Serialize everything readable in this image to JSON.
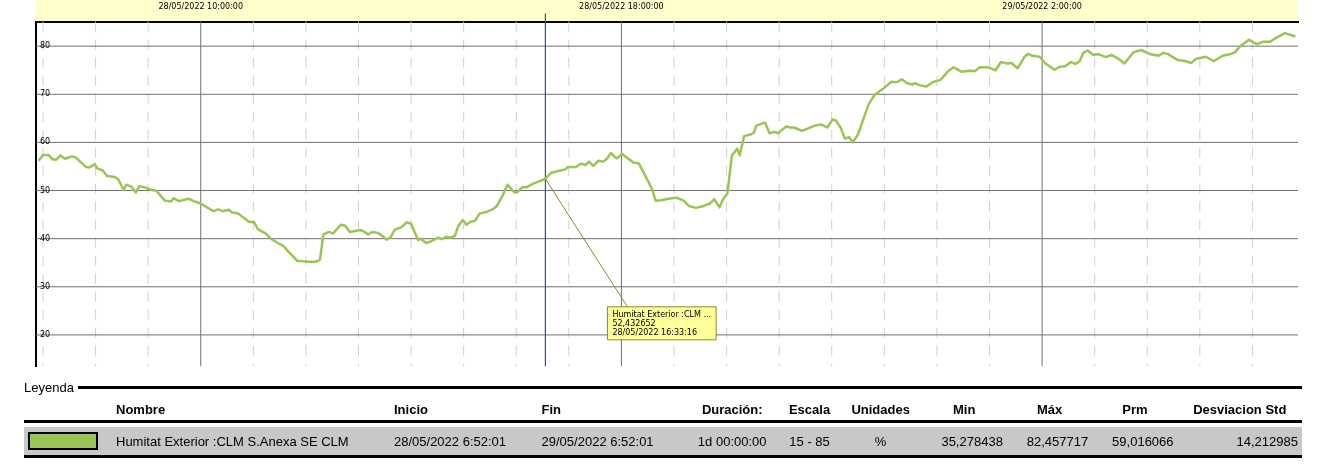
{
  "chart_data": {
    "type": "line",
    "legend": "bottom",
    "legend_title": "Leyenda",
    "grid": true,
    "marker": "none",
    "line_style": "solid",
    "xlim": [
      "2022-05-28T06:52:01",
      "2022-05-29T06:52:01"
    ],
    "ylim": [
      13.5,
      85.1
    ],
    "xticks": [
      {
        "value": "2022-05-28T07:00",
        "label": null
      },
      {
        "value": "2022-05-28T08:00",
        "label": null
      },
      {
        "value": "2022-05-28T09:00",
        "label": null
      },
      {
        "value": "2022-05-28T10:00",
        "label": "28/05/2022 10:00:00"
      },
      {
        "value": "2022-05-28T11:00",
        "label": null
      },
      {
        "value": "2022-05-28T12:00",
        "label": null
      },
      {
        "value": "2022-05-28T13:00",
        "label": null
      },
      {
        "value": "2022-05-28T14:00",
        "label": null
      },
      {
        "value": "2022-05-28T15:00",
        "label": null
      },
      {
        "value": "2022-05-28T16:00",
        "label": null
      },
      {
        "value": "2022-05-28T17:00",
        "label": null
      },
      {
        "value": "2022-05-28T18:00",
        "label": "28/05/2022 18:00:00"
      },
      {
        "value": "2022-05-28T19:00",
        "label": null
      },
      {
        "value": "2022-05-28T20:00",
        "label": null
      },
      {
        "value": "2022-05-28T21:00",
        "label": null
      },
      {
        "value": "2022-05-28T22:00",
        "label": null
      },
      {
        "value": "2022-05-28T23:00",
        "label": null
      },
      {
        "value": "2022-05-29T00:00",
        "label": null
      },
      {
        "value": "2022-05-29T01:00",
        "label": null
      },
      {
        "value": "2022-05-29T02:00",
        "label": "29/05/2022 2:00:00"
      },
      {
        "value": "2022-05-29T03:00",
        "label": null
      },
      {
        "value": "2022-05-29T04:00",
        "label": null
      },
      {
        "value": "2022-05-29T05:00",
        "label": null
      },
      {
        "value": "2022-05-29T06:00",
        "label": null
      }
    ],
    "yticks": [
      20,
      30,
      40,
      50,
      60,
      70,
      80
    ],
    "ref_lines": [
      {
        "axis": "x",
        "value": "2022-05-28T16:33:16",
        "color": "#1f5aa6"
      }
    ],
    "annotations": [
      "Nombre",
      "Inicio",
      "Fin",
      "Duración:",
      "Escala",
      "Unidades",
      "Min",
      "Máx",
      "Prm",
      "Desviacion Std",
      "28/05/2022 6:52:01",
      "29/05/2022 6:52:01",
      "1d 00:00:00",
      "15 - 85",
      "%",
      "35,278438",
      "82,457717",
      "59,016066",
      "14,212985",
      {
        "text": "Humitat Exterior :CLM ...\n52,432652\n28/05/2022 16:33:16",
        "x": "2022-05-28T16:33:16",
        "y": 52.432652
      }
    ],
    "series": [
      {
        "name": "Humitat Exterior :CLM S.Anexa SE CLM",
        "color": "#9cc455",
        "x": [
          "2022-05-28T06:55",
          "2022-05-28T07:00",
          "2022-05-28T07:06",
          "2022-05-28T07:11",
          "2022-05-28T07:15",
          "2022-05-28T07:20",
          "2022-05-28T07:25",
          "2022-05-28T07:33",
          "2022-05-28T07:38",
          "2022-05-28T07:43",
          "2022-05-28T07:49",
          "2022-05-28T07:53",
          "2022-05-28T07:59",
          "2022-05-28T08:02",
          "2022-05-28T08:08",
          "2022-05-28T08:13",
          "2022-05-28T08:22",
          "2022-05-28T08:26",
          "2022-05-28T08:32",
          "2022-05-28T08:35",
          "2022-05-28T08:41",
          "2022-05-28T08:46",
          "2022-05-28T08:50",
          "2022-05-28T08:57",
          "2022-05-28T09:04",
          "2022-05-28T09:09",
          "2022-05-28T09:19",
          "2022-05-28T09:26",
          "2022-05-28T09:29",
          "2022-05-28T09:35",
          "2022-05-28T09:46",
          "2022-05-28T09:52",
          "2022-05-28T10:00",
          "2022-05-28T10:08",
          "2022-05-28T10:15",
          "2022-05-28T10:20",
          "2022-05-28T10:25",
          "2022-05-28T10:32",
          "2022-05-28T10:35",
          "2022-05-28T10:43",
          "2022-05-28T10:51",
          "2022-05-28T10:55",
          "2022-05-28T11:01",
          "2022-05-28T11:05",
          "2022-05-28T11:14",
          "2022-05-28T11:20",
          "2022-05-28T11:28",
          "2022-05-28T11:34",
          "2022-05-28T11:40",
          "2022-05-28T11:46",
          "2022-05-28T11:50",
          "2022-05-28T11:56",
          "2022-05-28T12:03",
          "2022-05-28T12:11",
          "2022-05-28T12:16",
          "2022-05-28T12:20",
          "2022-05-28T12:26",
          "2022-05-28T12:31",
          "2022-05-28T12:40",
          "2022-05-28T12:45",
          "2022-05-28T12:50",
          "2022-05-28T12:56",
          "2022-05-28T13:02",
          "2022-05-28T13:05",
          "2022-05-28T13:11",
          "2022-05-28T13:16",
          "2022-05-28T13:22",
          "2022-05-28T13:27",
          "2022-05-28T13:32",
          "2022-05-28T13:37",
          "2022-05-28T13:41",
          "2022-05-28T13:49",
          "2022-05-28T13:55",
          "2022-05-28T14:00",
          "2022-05-28T14:03",
          "2022-05-28T14:08",
          "2022-05-28T14:11",
          "2022-05-28T14:17",
          "2022-05-28T14:22",
          "2022-05-28T14:31",
          "2022-05-28T14:35",
          "2022-05-28T14:40",
          "2022-05-28T14:45",
          "2022-05-28T14:50",
          "2022-05-28T14:54",
          "2022-05-28T14:59",
          "2022-05-28T15:03",
          "2022-05-28T15:08",
          "2022-05-28T15:13",
          "2022-05-28T15:18",
          "2022-05-28T15:27",
          "2022-05-28T15:34",
          "2022-05-28T15:38",
          "2022-05-28T15:44",
          "2022-05-28T15:50",
          "2022-05-28T15:58",
          "2022-05-28T16:01",
          "2022-05-28T16:07",
          "2022-05-28T16:12",
          "2022-05-28T16:19",
          "2022-05-28T16:23",
          "2022-05-28T16:33",
          "2022-05-28T16:40",
          "2022-05-28T16:49",
          "2022-05-28T16:56",
          "2022-05-28T16:59",
          "2022-05-28T17:08",
          "2022-05-28T17:14",
          "2022-05-28T17:19",
          "2022-05-28T17:23",
          "2022-05-28T17:28",
          "2022-05-28T17:34",
          "2022-05-28T17:39",
          "2022-05-28T17:44",
          "2022-05-28T17:48",
          "2022-05-28T17:53",
          "2022-05-28T17:55",
          "2022-05-28T18:01",
          "2022-05-28T18:07",
          "2022-05-28T18:14",
          "2022-05-28T18:20",
          "2022-05-28T18:30",
          "2022-05-28T18:35",
          "2022-05-28T18:39",
          "2022-05-28T18:45",
          "2022-05-28T18:57",
          "2022-05-28T19:03",
          "2022-05-28T19:11",
          "2022-05-28T19:17",
          "2022-05-28T19:25",
          "2022-05-28T19:34",
          "2022-05-28T19:41",
          "2022-05-28T19:46",
          "2022-05-28T19:52",
          "2022-05-28T19:56",
          "2022-05-28T20:01",
          "2022-05-28T20:06",
          "2022-05-28T20:12",
          "2022-05-28T20:15",
          "2022-05-28T20:20",
          "2022-05-28T20:28",
          "2022-05-28T20:31",
          "2022-05-28T20:34",
          "2022-05-28T20:40",
          "2022-05-28T20:44",
          "2022-05-28T20:49",
          "2022-05-28T20:55",
          "2022-05-28T20:59",
          "2022-05-28T21:02",
          "2022-05-28T21:08",
          "2022-05-28T21:13",
          "2022-05-28T21:17",
          "2022-05-28T21:26",
          "2022-05-28T21:33",
          "2022-05-28T21:41",
          "2022-05-28T21:48",
          "2022-05-28T21:55",
          "2022-05-28T22:01",
          "2022-05-28T22:05",
          "2022-05-28T22:10",
          "2022-05-28T22:15",
          "2022-05-28T22:20",
          "2022-05-28T22:24",
          "2022-05-28T22:30",
          "2022-05-28T22:37",
          "2022-05-28T22:42",
          "2022-05-28T22:49",
          "2022-05-28T22:59",
          "2022-05-28T23:08",
          "2022-05-28T23:14",
          "2022-05-28T23:20",
          "2022-05-28T23:25",
          "2022-05-28T23:32",
          "2022-05-28T23:35",
          "2022-05-28T23:40",
          "2022-05-28T23:48",
          "2022-05-28T23:55",
          "2022-05-29T00:04",
          "2022-05-29T00:14",
          "2022-05-29T00:19",
          "2022-05-29T00:28",
          "2022-05-29T00:37",
          "2022-05-29T00:43",
          "2022-05-29T00:49",
          "2022-05-29T00:58",
          "2022-05-29T01:07",
          "2022-05-29T01:13",
          "2022-05-29T01:20",
          "2022-05-29T01:25",
          "2022-05-29T01:32",
          "2022-05-29T01:40",
          "2022-05-29T01:44",
          "2022-05-29T01:49",
          "2022-05-29T01:57",
          "2022-05-29T02:04",
          "2022-05-29T02:14",
          "2022-05-29T02:20",
          "2022-05-29T02:26",
          "2022-05-29T02:33",
          "2022-05-29T02:38",
          "2022-05-29T02:43",
          "2022-05-29T02:47",
          "2022-05-29T02:52",
          "2022-05-29T02:58",
          "2022-05-29T03:05",
          "2022-05-29T03:13",
          "2022-05-29T03:19",
          "2022-05-29T03:27",
          "2022-05-29T03:34",
          "2022-05-29T03:44",
          "2022-05-29T03:53",
          "2022-05-29T04:04",
          "2022-05-29T04:13",
          "2022-05-29T04:18",
          "2022-05-29T04:23",
          "2022-05-29T04:35",
          "2022-05-29T04:43",
          "2022-05-29T04:50",
          "2022-05-29T04:56",
          "2022-05-29T05:07",
          "2022-05-29T05:16",
          "2022-05-29T05:26",
          "2022-05-29T05:34",
          "2022-05-29T05:40",
          "2022-05-29T05:46",
          "2022-05-29T05:56",
          "2022-05-29T06:05",
          "2022-05-29T06:12",
          "2022-05-29T06:20",
          "2022-05-29T06:25",
          "2022-05-29T06:37",
          "2022-05-29T06:49"
        ],
        "values": [
          56.2,
          57.4,
          57.4,
          56.5,
          56.4,
          57.3,
          56.6,
          57.1,
          56.8,
          55.9,
          54.9,
          54.8,
          55.5,
          54.6,
          54.2,
          53.0,
          52.8,
          52.3,
          50.1,
          51.2,
          50.8,
          49.6,
          50.9,
          50.6,
          50.1,
          50.0,
          47.9,
          47.7,
          48.4,
          47.8,
          48.3,
          47.8,
          47.3,
          46.4,
          45.7,
          46.1,
          45.7,
          46.0,
          45.5,
          45.2,
          44.1,
          43.5,
          43.4,
          42.0,
          41.1,
          40.0,
          39.1,
          38.5,
          37.3,
          36.2,
          35.4,
          35.3,
          35.2,
          35.2,
          35.6,
          40.9,
          41.4,
          41.1,
          42.9,
          42.7,
          41.4,
          41.6,
          41.8,
          41.6,
          40.9,
          41.4,
          41.2,
          40.6,
          39.8,
          40.4,
          41.8,
          42.4,
          43.4,
          43.1,
          41.8,
          39.7,
          40.0,
          39.1,
          39.4,
          40.2,
          39.9,
          40.4,
          40.2,
          40.6,
          42.7,
          43.9,
          42.9,
          43.5,
          43.7,
          45.2,
          45.6,
          46.2,
          46.8,
          48.8,
          51.2,
          49.6,
          49.6,
          50.7,
          50.7,
          51.4,
          51.7,
          52.4,
          53.7,
          54.1,
          54.4,
          54.9,
          54.9,
          55.6,
          55.3,
          56.0,
          55.1,
          56.2,
          56.0,
          56.7,
          57.8,
          56.9,
          56.7,
          57.6,
          56.7,
          55.8,
          55.6,
          52.1,
          50.3,
          47.9,
          48.0,
          48.4,
          48.5,
          47.9,
          46.8,
          46.4,
          46.8,
          47.3,
          48.2,
          46.5,
          48.2,
          49.4,
          57.3,
          58.7,
          57.3,
          61.3,
          61.7,
          62.0,
          63.5,
          63.9,
          64.1,
          61.9,
          62.2,
          61.9,
          62.4,
          63.3,
          63.1,
          63.1,
          62.4,
          62.9,
          63.5,
          63.7,
          63.1,
          64.8,
          64.5,
          63.1,
          60.8,
          61.1,
          60.0,
          61.7,
          65.3,
          67.9,
          69.9,
          71.2,
          72.6,
          72.5,
          73.1,
          72.4,
          72.0,
          72.3,
          71.9,
          71.6,
          72.5,
          73.0,
          75.0,
          75.6,
          74.7,
          74.9,
          74.8,
          75.6,
          75.6,
          75.0,
          76.7,
          76.4,
          76.5,
          75.4,
          77.8,
          78.4,
          78.0,
          77.8,
          76.4,
          75.1,
          75.7,
          75.8,
          76.7,
          76.3,
          76.9,
          78.6,
          79.1,
          78.2,
          78.3,
          77.7,
          78.2,
          77.4,
          76.4,
          78.7,
          79.2,
          78.3,
          78.0,
          78.6,
          78.4,
          77.1,
          76.9,
          76.5,
          77.4,
          77.8,
          76.9,
          78.0,
          78.3,
          78.7,
          80.0,
          81.3,
          80.4,
          80.9,
          80.9,
          81.5,
          82.7,
          82.0
        ]
      }
    ]
  }
}
